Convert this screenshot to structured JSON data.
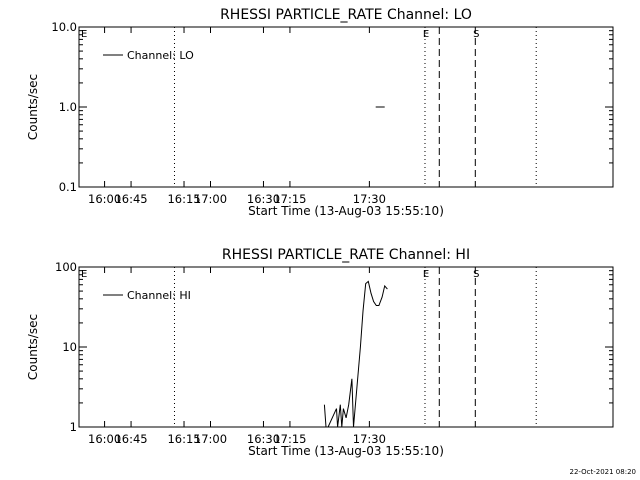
{
  "timestamp": "22-Oct-2021 08:20",
  "chart_data": [
    {
      "type": "line",
      "title": "RHESSI PARTICLE_RATE Channel: LO",
      "xlabel": "Start Time (13-Aug-03 15:55:10)",
      "ylabel": "Counts/sec",
      "yscale": "log",
      "xlim": [
        1555.17,
        1736.0
      ],
      "ylim": [
        0.1,
        10.0
      ],
      "x_ticks": [
        {
          "v": 1560,
          "label": "16:00"
        },
        {
          "v": 1575,
          "label": "16:15"
        },
        {
          "v": 1590,
          "label": "16:30"
        },
        {
          "v": 1605,
          "label": "16:45"
        },
        {
          "v": 1620,
          "label": "17:00"
        },
        {
          "v": 1635,
          "label": "17:15"
        },
        {
          "v": 1650,
          "label": "17:30"
        }
      ],
      "y_ticks": [
        {
          "v": 0.1,
          "label": "0.1"
        },
        {
          "v": 1.0,
          "label": "1.0"
        },
        {
          "v": 10.0,
          "label": "10.0"
        }
      ],
      "series": [
        {
          "name": "Channel: LO",
          "points": [
            [
              1651.2,
              1.0
            ],
            [
              1652.9,
              1.0
            ]
          ]
        }
      ],
      "vlines": [
        {
          "x": 1613.2,
          "style": "dotted",
          "label": ""
        },
        {
          "x": 1670.0,
          "style": "dashed",
          "label": "S"
        },
        {
          "x": 1700.5,
          "style": "dotted",
          "label": "E"
        },
        {
          "x": 1703.2,
          "style": "dashed",
          "label": ""
        },
        {
          "x": 1721.5,
          "style": "dotted",
          "label": ""
        }
      ],
      "left_marker": "E",
      "legend_position": "top-left"
    },
    {
      "type": "line",
      "title": "RHESSI PARTICLE_RATE Channel: HI",
      "xlabel": "Start Time (13-Aug-03 15:55:10)",
      "ylabel": "Counts/sec",
      "yscale": "log",
      "xlim": [
        1555.17,
        1736.0
      ],
      "ylim": [
        1,
        100
      ],
      "x_ticks": [
        {
          "v": 1560,
          "label": "16:00"
        },
        {
          "v": 1575,
          "label": "16:15"
        },
        {
          "v": 1590,
          "label": "16:30"
        },
        {
          "v": 1605,
          "label": "16:45"
        },
        {
          "v": 1620,
          "label": "17:00"
        },
        {
          "v": 1635,
          "label": "17:15"
        },
        {
          "v": 1650,
          "label": "17:30"
        }
      ],
      "y_ticks": [
        {
          "v": 1,
          "label": "1"
        },
        {
          "v": 10,
          "label": "10"
        },
        {
          "v": 100,
          "label": "100"
        }
      ],
      "series": [
        {
          "name": "Channel: HI",
          "points": [
            [
              1641.5,
              1.9
            ],
            [
              1641.8,
              1.0
            ],
            [
              1642.2,
              1.0
            ],
            [
              1643.8,
              1.7
            ],
            [
              1644.0,
              1.0
            ],
            [
              1644.5,
              1.9
            ],
            [
              1644.8,
              1.0
            ],
            [
              1645.1,
              1.7
            ],
            [
              1645.6,
              1.3
            ],
            [
              1646.1,
              1.9
            ],
            [
              1646.7,
              4.0
            ],
            [
              1647.0,
              1.0
            ],
            [
              1648.3,
              10.0
            ],
            [
              1648.8,
              28.0
            ],
            [
              1649.3,
              62.0
            ],
            [
              1649.8,
              66.0
            ],
            [
              1650.3,
              47.0
            ],
            [
              1650.8,
              37.0
            ],
            [
              1651.3,
              33.0
            ],
            [
              1651.8,
              33.0
            ],
            [
              1652.4,
              42.0
            ],
            [
              1652.9,
              58.0
            ],
            [
              1653.4,
              53.0
            ]
          ]
        }
      ],
      "vlines": [
        {
          "x": 1613.2,
          "style": "dotted",
          "label": ""
        },
        {
          "x": 1670.0,
          "style": "dashed",
          "label": "S"
        },
        {
          "x": 1700.5,
          "style": "dotted",
          "label": "E"
        },
        {
          "x": 1703.2,
          "style": "dashed",
          "label": ""
        },
        {
          "x": 1721.5,
          "style": "dotted",
          "label": ""
        }
      ],
      "left_marker": "E",
      "legend_position": "top-left"
    }
  ]
}
